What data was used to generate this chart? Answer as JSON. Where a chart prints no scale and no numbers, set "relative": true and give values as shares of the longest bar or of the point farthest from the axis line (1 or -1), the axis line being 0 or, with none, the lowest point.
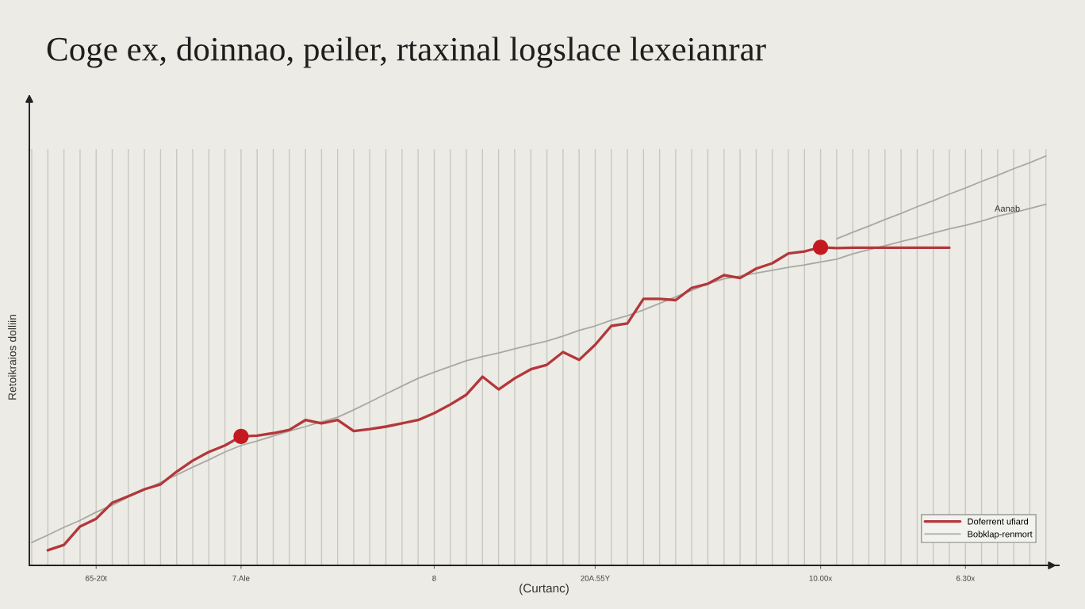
{
  "chart_data": {
    "type": "line",
    "title": "Coge ex, doinnao, peiler, rtaxinal logslace lexeianrar",
    "xlabel": "(Curtanc)",
    "ylabel": "Retoikraios dolliin",
    "categories": [
      null,
      null,
      null,
      null,
      "65-20t",
      null,
      null,
      null,
      null,
      null,
      null,
      null,
      null,
      "7.Ale",
      null,
      null,
      null,
      null,
      null,
      null,
      null,
      null,
      null,
      null,
      null,
      "8",
      null,
      null,
      null,
      null,
      null,
      null,
      null,
      null,
      null,
      "20A.55Y",
      null,
      null,
      null,
      null,
      null,
      null,
      null,
      null,
      null,
      null,
      null,
      null,
      null,
      "10.00x",
      null,
      null,
      null,
      null,
      null,
      null,
      null,
      null,
      "6.30x",
      null,
      null,
      null,
      null,
      null
    ],
    "relative": true,
    "series": [
      {
        "name": "Doferrent ufiard",
        "color": "#b3373a",
        "values": [
          null,
          0.037,
          0.05,
          0.095,
          0.114,
          0.153,
          0.169,
          0.186,
          0.198,
          0.229,
          0.256,
          0.277,
          0.293,
          0.315,
          0.317,
          0.323,
          0.331,
          0.355,
          0.347,
          0.355,
          0.328,
          0.333,
          0.339,
          0.347,
          0.355,
          0.372,
          0.393,
          0.417,
          0.461,
          0.43,
          0.457,
          0.479,
          0.49,
          0.521,
          0.502,
          0.539,
          0.585,
          0.591,
          0.651,
          0.651,
          0.648,
          0.678,
          0.688,
          0.709,
          0.702,
          0.725,
          0.738,
          0.762,
          0.767,
          0.777,
          0.775,
          0.776,
          0.776,
          0.776,
          0.776,
          0.776,
          0.776,
          0.776,
          null,
          null,
          null,
          null,
          null,
          null
        ]
      },
      {
        "name": "Bobklap-renmort",
        "color": "#a8a8a4",
        "values": [
          0.056,
          0.074,
          0.093,
          0.11,
          0.13,
          0.147,
          0.167,
          0.184,
          0.203,
          0.221,
          0.24,
          0.258,
          0.277,
          0.293,
          0.304,
          0.316,
          0.328,
          0.339,
          0.351,
          0.362,
          0.38,
          0.399,
          0.419,
          0.438,
          0.457,
          0.472,
          0.486,
          0.5,
          0.51,
          0.519,
          0.529,
          0.539,
          0.548,
          0.56,
          0.574,
          0.585,
          0.599,
          0.61,
          0.624,
          0.64,
          0.656,
          0.672,
          0.688,
          0.7,
          0.707,
          0.714,
          0.721,
          0.728,
          0.734,
          0.741,
          0.748,
          0.761,
          0.771,
          0.781,
          0.791,
          0.801,
          0.812,
          0.822,
          0.831,
          0.841,
          0.853,
          0.862,
          0.872,
          0.882
        ]
      },
      {
        "color": "#a8a8a4",
        "values": [
          null,
          null,
          null,
          null,
          null,
          null,
          null,
          null,
          null,
          null,
          null,
          null,
          null,
          null,
          null,
          null,
          null,
          null,
          null,
          null,
          null,
          null,
          null,
          null,
          null,
          null,
          null,
          null,
          null,
          null,
          null,
          null,
          null,
          null,
          null,
          null,
          null,
          null,
          null,
          null,
          null,
          null,
          null,
          null,
          null,
          null,
          null,
          null,
          null,
          null,
          0.798,
          0.814,
          0.829,
          0.845,
          0.86,
          0.876,
          0.891,
          0.907,
          0.922,
          0.938,
          0.953,
          0.969,
          0.984,
          1.0
        ]
      },
      {
        "type": "scatter",
        "marker": "circle",
        "color": "#c41a1f",
        "values": [
          null,
          null,
          null,
          null,
          null,
          null,
          null,
          null,
          null,
          null,
          null,
          null,
          null,
          0.315,
          null,
          null,
          null,
          null,
          null,
          null,
          null,
          null,
          null,
          null,
          null,
          null,
          null,
          null,
          null,
          null,
          null,
          null,
          null,
          null,
          null,
          null,
          null,
          null,
          null,
          null,
          null,
          null,
          null,
          null,
          null,
          null,
          null,
          null,
          null,
          0.777,
          null,
          null,
          null,
          null,
          null,
          null,
          null,
          null,
          null,
          null,
          null,
          null,
          null,
          null
        ]
      }
    ],
    "annotations": [
      {
        "text": "Aanab",
        "y": 0.86
      }
    ],
    "grid": "x",
    "legend": "bottom right",
    "tick_labels": "x"
  }
}
